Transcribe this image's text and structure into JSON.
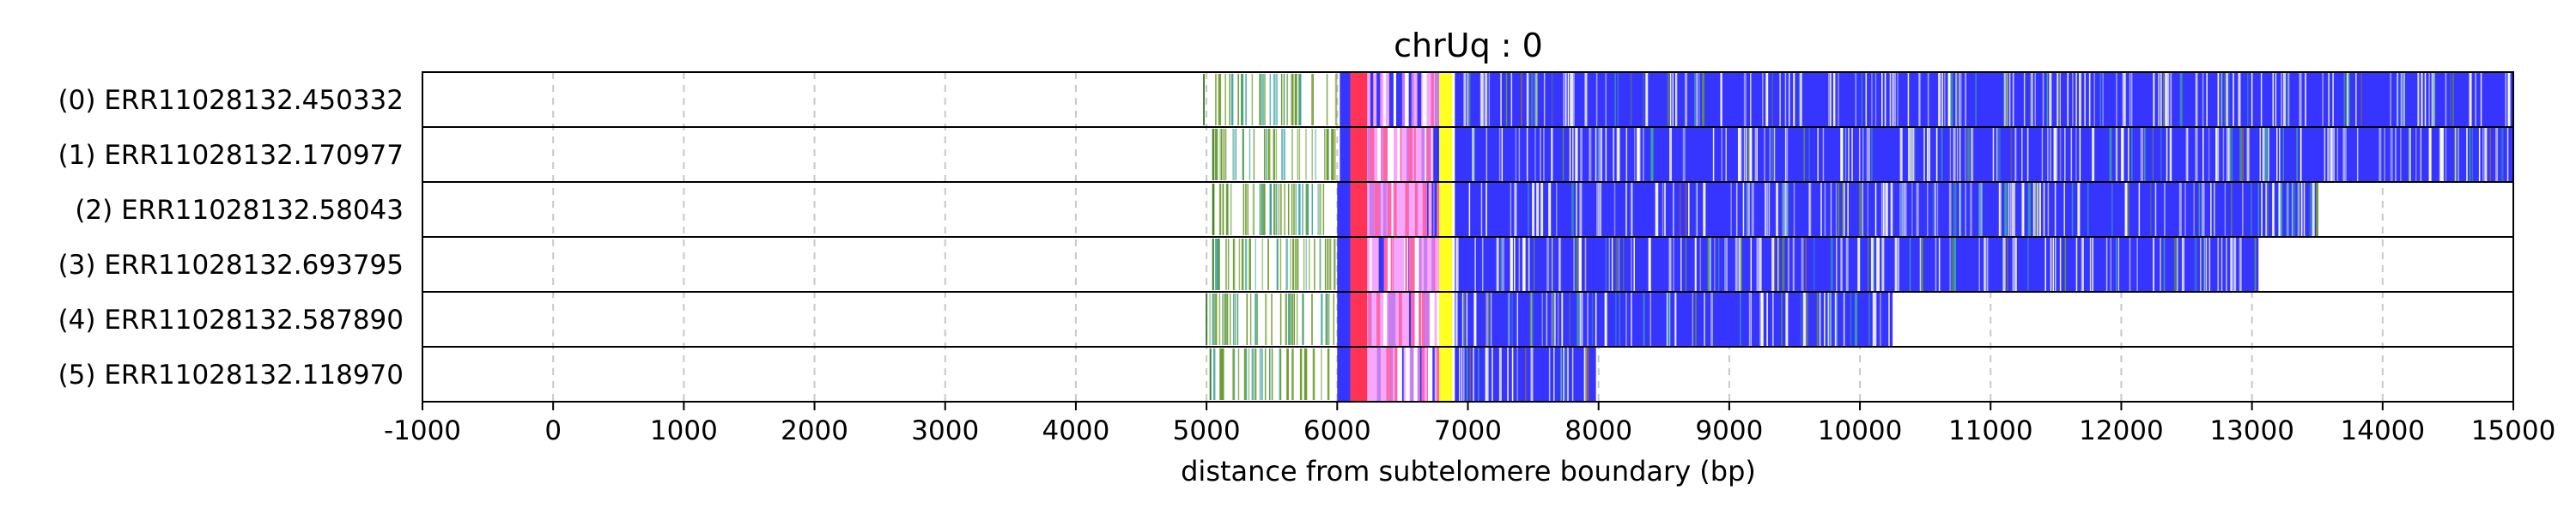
{
  "chart_data": {
    "type": "heatmap",
    "title": "chrUq : 0",
    "xlabel": "distance from subtelomere boundary (bp)",
    "ylabel": "",
    "xlim": [
      -1000,
      15000
    ],
    "x_ticks": [
      -1000,
      0,
      1000,
      2000,
      3000,
      4000,
      5000,
      6000,
      7000,
      8000,
      9000,
      10000,
      11000,
      12000,
      13000,
      14000,
      15000
    ],
    "grid": true,
    "colors": {
      "dense_repeat": "#3535ff",
      "bright_band": "#ffff22",
      "red_band": "#ff3355",
      "pink_band": "#f6a8ff",
      "violet_band": "#c87cf0",
      "green_lines": "#6a9a2c",
      "teal_lines": "#3aa3a0"
    },
    "reads": [
      {
        "label": "(0) ERR11028132.450332",
        "start": 4980,
        "end": 15000,
        "band_start": 6020,
        "yellow": [
          6780,
          6880
        ],
        "dense_start": 6900
      },
      {
        "label": "(1) ERR11028132.170977",
        "start": 5050,
        "end": 15000,
        "band_start": 6020,
        "yellow": [
          6780,
          6880
        ],
        "dense_start": 6900
      },
      {
        "label": "(2) ERR11028132.58043",
        "start": 5050,
        "end": 13500,
        "band_start": 6000,
        "yellow": [
          6780,
          6880
        ],
        "dense_start": 6900
      },
      {
        "label": "(3) ERR11028132.693795",
        "start": 5050,
        "end": 13050,
        "band_start": 6000,
        "yellow": [
          6780,
          6880
        ],
        "dense_start": 6900
      },
      {
        "label": "(4) ERR11028132.587890",
        "start": 5000,
        "end": 10250,
        "band_start": 6000,
        "yellow": [
          6780,
          6880
        ],
        "dense_start": 6900
      },
      {
        "label": "(5) ERR11028132.118970",
        "start": 5030,
        "end": 7980,
        "band_start": 6000,
        "yellow": [
          6780,
          6880
        ],
        "dense_start": 6900
      }
    ]
  }
}
